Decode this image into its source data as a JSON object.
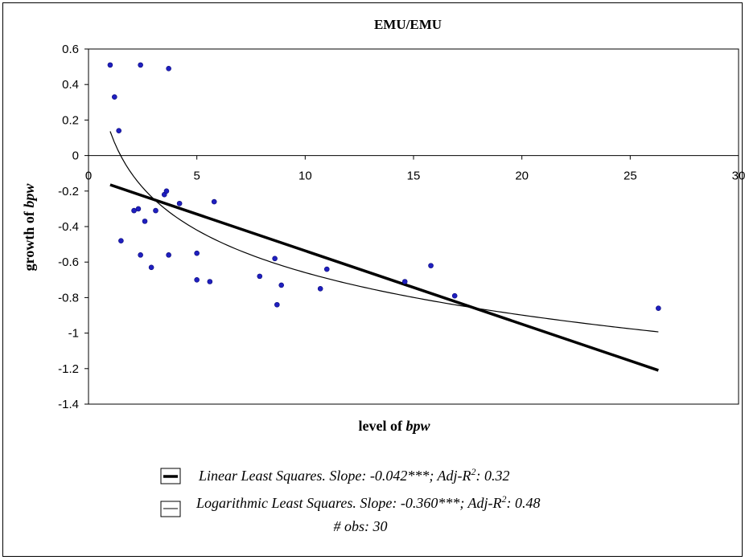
{
  "chart_data": {
    "type": "scatter",
    "title": "EMU/EMU",
    "xlabel_text": "level of ",
    "xlabel_var": "bpw",
    "ylabel_text": "growth of ",
    "ylabel_var": "bpw",
    "xlim": [
      0,
      30
    ],
    "ylim": [
      -1.4,
      0.6
    ],
    "x_ticks": [
      0,
      5,
      10,
      15,
      20,
      25,
      30
    ],
    "y_ticks": [
      0.6,
      0.4,
      0.2,
      0,
      -0.2,
      -0.4,
      -0.6,
      -0.8,
      -1,
      -1.2,
      -1.4
    ],
    "grid": false,
    "marker_color": "#1f1fbf",
    "points": [
      [
        1.0,
        0.51
      ],
      [
        1.2,
        0.33
      ],
      [
        1.4,
        0.14
      ],
      [
        1.5,
        -0.48
      ],
      [
        2.1,
        -0.31
      ],
      [
        2.3,
        -0.3
      ],
      [
        2.4,
        0.51
      ],
      [
        2.4,
        -0.56
      ],
      [
        2.6,
        -0.37
      ],
      [
        2.9,
        -0.63
      ],
      [
        3.1,
        -0.31
      ],
      [
        3.5,
        -0.22
      ],
      [
        3.6,
        -0.2
      ],
      [
        3.7,
        0.49
      ],
      [
        3.7,
        -0.56
      ],
      [
        4.2,
        -0.27
      ],
      [
        5.0,
        -0.55
      ],
      [
        5.0,
        -0.7
      ],
      [
        5.6,
        -0.71
      ],
      [
        5.8,
        -0.26
      ],
      [
        7.9,
        -0.68
      ],
      [
        8.6,
        -0.58
      ],
      [
        8.7,
        -0.84
      ],
      [
        8.9,
        -0.73
      ],
      [
        10.7,
        -0.75
      ],
      [
        11.0,
        -0.64
      ],
      [
        14.6,
        -0.71
      ],
      [
        15.8,
        -0.62
      ],
      [
        16.9,
        -0.79
      ],
      [
        26.3,
        -0.86
      ]
    ],
    "linear_fit": {
      "x_start": 1.0,
      "x_end": 26.3
    },
    "log_fit": {
      "x_start": 1.0,
      "x_end": 26.3
    },
    "legend": {
      "linear_label": "Linear Least Squares. Slope: -0.042***; Adj-R",
      "linear_r2": ": 0.32",
      "log_label": "Logarithmic Least Squares. Slope: -0.360***; Adj-R",
      "log_r2": ": 0.48",
      "sup": "2",
      "obs": "# obs: 30"
    }
  }
}
